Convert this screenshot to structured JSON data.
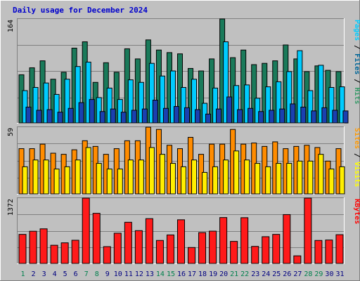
{
  "chart_data": {
    "type": "bar",
    "title": "Daily usage for December 2024",
    "categories": [
      "1",
      "2",
      "3",
      "4",
      "5",
      "6",
      "7",
      "8",
      "9",
      "10",
      "11",
      "12",
      "13",
      "14",
      "15",
      "16",
      "17",
      "18",
      "19",
      "20",
      "21",
      "22",
      "23",
      "24",
      "25",
      "26",
      "27",
      "28",
      "29",
      "30",
      "31"
    ],
    "weekend_days": [
      "1",
      "7",
      "8",
      "14",
      "15",
      "21",
      "22",
      "28",
      "29"
    ],
    "panels": [
      {
        "id": "top",
        "ymax_label": "164",
        "ymax": 164,
        "legend": [
          {
            "text": "Pages",
            "color": "#00ccff"
          },
          {
            "text": " / ",
            "color": "#000000"
          },
          {
            "text": "Files",
            "color": "#006699"
          },
          {
            "text": " / ",
            "color": "#000000"
          },
          {
            "text": "Hits",
            "color": "#339966"
          }
        ],
        "series": [
          {
            "name": "Hits",
            "color": "#1a7a5a",
            "values": [
              76,
              87,
              98,
              69,
              80,
              118,
              128,
              64,
              95,
              80,
              117,
              101,
              131,
              115,
              111,
              109,
              86,
              82,
              101,
              164,
              103,
              115,
              92,
              94,
              98,
              123,
              101,
              81,
              90,
              83,
              81
            ]
          },
          {
            "name": "Files",
            "color": "#00ccff",
            "values": [
              51,
              56,
              63,
              45,
              69,
              89,
              96,
              40,
              55,
              37,
              68,
              64,
              94,
              74,
              82,
              56,
              69,
              31,
              55,
              128,
              59,
              60,
              39,
              57,
              65,
              81,
              114,
              51,
              91,
              56,
              57
            ]
          },
          {
            "name": "Pages",
            "color": "#1a40b0",
            "values": [
              25,
              20,
              21,
              17,
              23,
              32,
              37,
              18,
              22,
              17,
              20,
              22,
              36,
              23,
              26,
              24,
              21,
              14,
              22,
              41,
              21,
              23,
              18,
              20,
              22,
              30,
              25,
              19,
              24,
              20,
              19
            ]
          }
        ]
      },
      {
        "id": "mid",
        "ymax_label": "59",
        "ymax": 59,
        "legend": [
          {
            "text": "Sites",
            "color": "#ff9900"
          },
          {
            "text": " / ",
            "color": "#000000"
          },
          {
            "text": "Visits",
            "color": "#ffff00"
          }
        ],
        "series": [
          {
            "name": "Visits",
            "color": "#ff8c00",
            "values": [
              40,
              40,
              44,
              36,
              35,
              39,
              47,
              42,
              35,
              40,
              47,
              47,
              59,
              57,
              43,
              40,
              50,
              35,
              44,
              44,
              57,
              44,
              45,
              42,
              46,
              40,
              42,
              43,
              41,
              29,
              40
            ]
          },
          {
            "name": "Sites",
            "color": "#ffee00",
            "values": [
              24,
              30,
              30,
              22,
              24,
              30,
              41,
              27,
              22,
              22,
              30,
              30,
              41,
              35,
              27,
              24,
              30,
              19,
              24,
              30,
              38,
              30,
              27,
              24,
              27,
              27,
              29,
              29,
              35,
              22,
              24
            ]
          }
        ]
      },
      {
        "id": "bot",
        "ymax_label": "1372",
        "ymax": 1372,
        "legend": [
          {
            "text": "KBytes",
            "color": "#ff0000"
          }
        ],
        "series": [
          {
            "name": "KBytes",
            "color": "#ff1a1a",
            "values": [
              610,
              676,
              727,
              382,
              433,
              487,
              1372,
              1053,
              353,
              635,
              865,
              689,
              941,
              483,
              599,
              917,
              335,
              648,
              678,
              964,
              463,
              961,
              358,
              562,
              610,
              1026,
              160,
              1372,
              483,
              492,
              604
            ]
          }
        ]
      }
    ]
  }
}
